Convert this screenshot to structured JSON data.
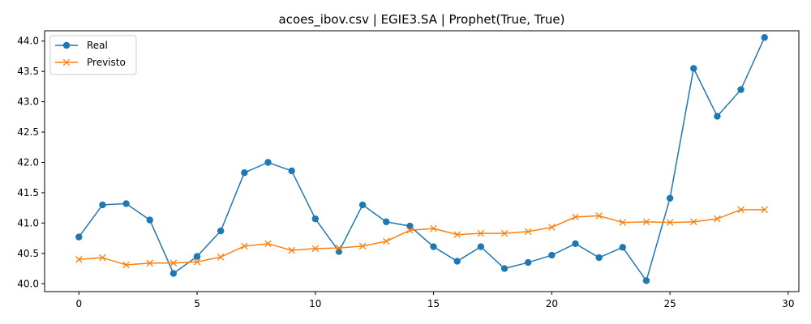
{
  "chart_data": {
    "type": "line",
    "title": "acoes_ibov.csv | EGIE3.SA | Prophet(True, True)",
    "xlabel": "",
    "ylabel": "",
    "xlim": [
      -1.45,
      30.45
    ],
    "ylim": [
      39.87,
      44.17
    ],
    "xticks": [
      0,
      5,
      10,
      15,
      20,
      25,
      30
    ],
    "yticks": [
      40.0,
      40.5,
      41.0,
      41.5,
      42.0,
      42.5,
      43.0,
      43.5,
      44.0
    ],
    "grid": false,
    "legend_position": "top-left",
    "x": [
      0,
      1,
      2,
      3,
      4,
      5,
      6,
      7,
      8,
      9,
      10,
      11,
      12,
      13,
      14,
      15,
      16,
      17,
      18,
      19,
      20,
      21,
      22,
      23,
      24,
      25,
      26,
      27,
      28,
      29
    ],
    "series": [
      {
        "name": "Real",
        "color": "#1f77b4",
        "marker": "circle",
        "values": [
          40.77,
          41.3,
          41.32,
          41.05,
          40.17,
          40.45,
          40.87,
          41.83,
          42.0,
          41.86,
          41.07,
          40.53,
          41.3,
          41.02,
          40.95,
          40.61,
          40.37,
          40.61,
          40.25,
          40.35,
          40.47,
          40.66,
          40.43,
          40.6,
          40.05,
          41.41,
          43.55,
          42.76,
          43.2,
          44.06
        ]
      },
      {
        "name": "Previsto",
        "color": "#ff7f0e",
        "marker": "x",
        "values": [
          40.4,
          40.43,
          40.31,
          40.34,
          40.34,
          40.36,
          40.44,
          40.62,
          40.66,
          40.55,
          40.58,
          40.59,
          40.62,
          40.7,
          40.88,
          40.91,
          40.81,
          40.83,
          40.83,
          40.86,
          40.93,
          41.1,
          41.12,
          41.01,
          41.02,
          41.01,
          41.02,
          41.07,
          41.22,
          41.22
        ]
      }
    ]
  }
}
